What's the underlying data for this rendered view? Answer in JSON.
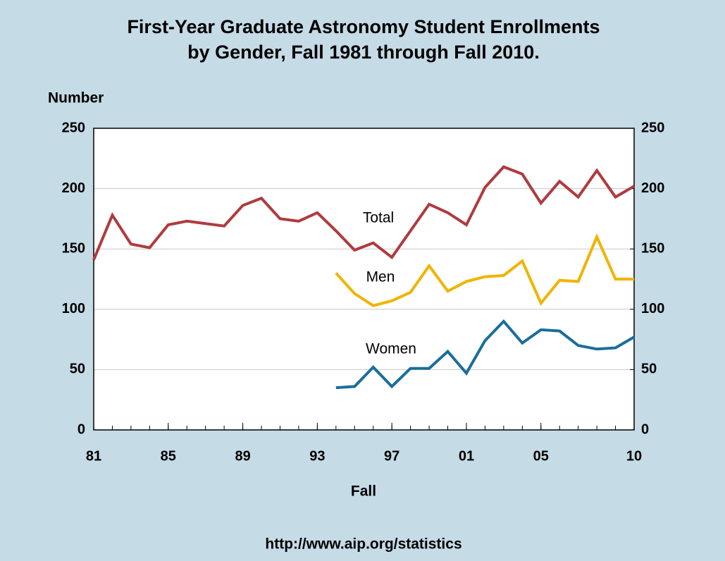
{
  "chart_data": {
    "type": "line",
    "title": "First-Year Graduate Astronomy Student Enrollments",
    "subtitle": "by Gender, Fall 1981 through Fall 2010.",
    "y_label": "Number",
    "x_label": "Fall",
    "source": "http://www.aip.org/statistics",
    "x": [
      1981,
      1982,
      1983,
      1984,
      1985,
      1986,
      1987,
      1988,
      1989,
      1990,
      1991,
      1992,
      1993,
      1994,
      1995,
      1996,
      1997,
      1998,
      1999,
      2000,
      2001,
      2002,
      2003,
      2004,
      2005,
      2006,
      2007,
      2008,
      2009,
      2010
    ],
    "series": [
      {
        "name": "Total",
        "color": "#b03a3e",
        "values": [
          141,
          178,
          154,
          151,
          170,
          173,
          171,
          169,
          186,
          192,
          175,
          173,
          180,
          165,
          149,
          155,
          143,
          165,
          187,
          180,
          170,
          201,
          218,
          212,
          188,
          206,
          193,
          215,
          193,
          202
        ]
      },
      {
        "name": "Men",
        "color": "#f0b400",
        "values": [
          null,
          null,
          null,
          null,
          null,
          null,
          null,
          null,
          null,
          null,
          null,
          null,
          null,
          130,
          113,
          103,
          107,
          114,
          136,
          115,
          123,
          127,
          128,
          140,
          105,
          124,
          123,
          160,
          125,
          125
        ]
      },
      {
        "name": "Women",
        "color": "#1a6e9a",
        "values": [
          null,
          null,
          null,
          null,
          null,
          null,
          null,
          null,
          null,
          null,
          null,
          null,
          null,
          35,
          36,
          52,
          36,
          51,
          51,
          65,
          47,
          74,
          90,
          72,
          83,
          82,
          70,
          67,
          68,
          77
        ]
      }
    ],
    "xlim": [
      1981,
      2010
    ],
    "xticks": [
      {
        "value": 1981,
        "label": "81"
      },
      {
        "value": 1985,
        "label": "85"
      },
      {
        "value": 1989,
        "label": "89"
      },
      {
        "value": 1993,
        "label": "93"
      },
      {
        "value": 1997,
        "label": "97"
      },
      {
        "value": 2001,
        "label": "01"
      },
      {
        "value": 2005,
        "label": "05"
      },
      {
        "value": 2010,
        "label": "10"
      }
    ],
    "ylim": [
      0,
      250
    ],
    "yticks": [
      0,
      50,
      100,
      150,
      200,
      250
    ],
    "y2lim": [
      0,
      250
    ],
    "y2ticks": [
      0,
      50,
      100,
      150,
      200,
      250
    ],
    "grid": true
  }
}
